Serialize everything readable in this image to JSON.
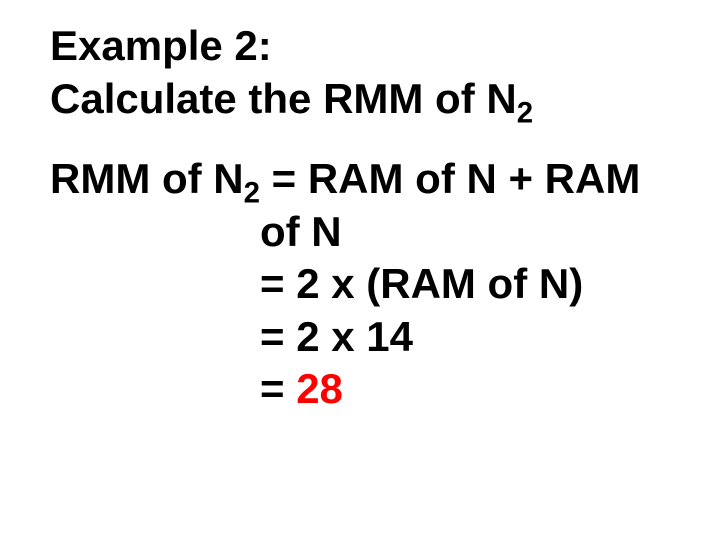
{
  "heading": {
    "line1": "Example 2:",
    "line2_pre": "Calculate the RMM of N",
    "line2_sub": "2"
  },
  "calc": {
    "l1_pre": "RMM of N",
    "l1_sub": "2",
    "l1_post": " = RAM of N + RAM",
    "l2": "   of N",
    "l3": "= 2 x (RAM of N)",
    "l4": "= 2 x 14",
    "l5_eq": "= ",
    "l5_val": "28"
  },
  "colors": {
    "text": "#000000",
    "result": "#ff0000",
    "background": "#ffffff"
  },
  "fonts": {
    "family": "Arial",
    "size_pt": 32,
    "weight": "bold"
  }
}
